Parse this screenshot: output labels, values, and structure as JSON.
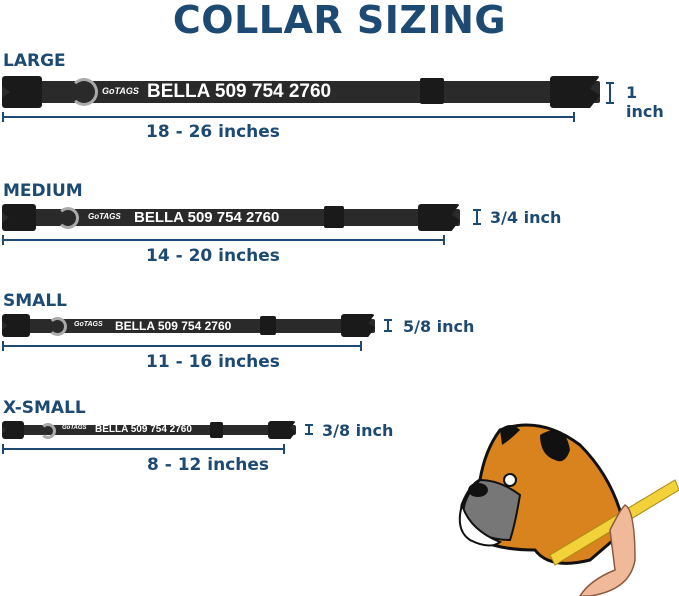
{
  "title": "COLLAR SIZING",
  "brand_logo": "GoTAGS",
  "sizes": [
    {
      "label": "LARGE",
      "range": "18 - 26 inches",
      "width": "1 inch",
      "name_text": "BELLA 509 754 2760"
    },
    {
      "label": "MEDIUM",
      "range": "14 - 20 inches",
      "width": "3/4 inch",
      "name_text": "BELLA 509 754 2760"
    },
    {
      "label": "SMALL",
      "range": "11 - 16 inches",
      "width": "5/8 inch",
      "name_text": "BELLA 509 754 2760"
    },
    {
      "label": "X-SMALL",
      "range": "8 - 12 inches",
      "width": "3/8 inch",
      "name_text": "BELLA 509 754 2760"
    }
  ],
  "colors": {
    "heading": "#1d4a73",
    "collar": "#2a2a2a",
    "dog_fur": "#d9831f",
    "tape": "#f2d13a"
  }
}
